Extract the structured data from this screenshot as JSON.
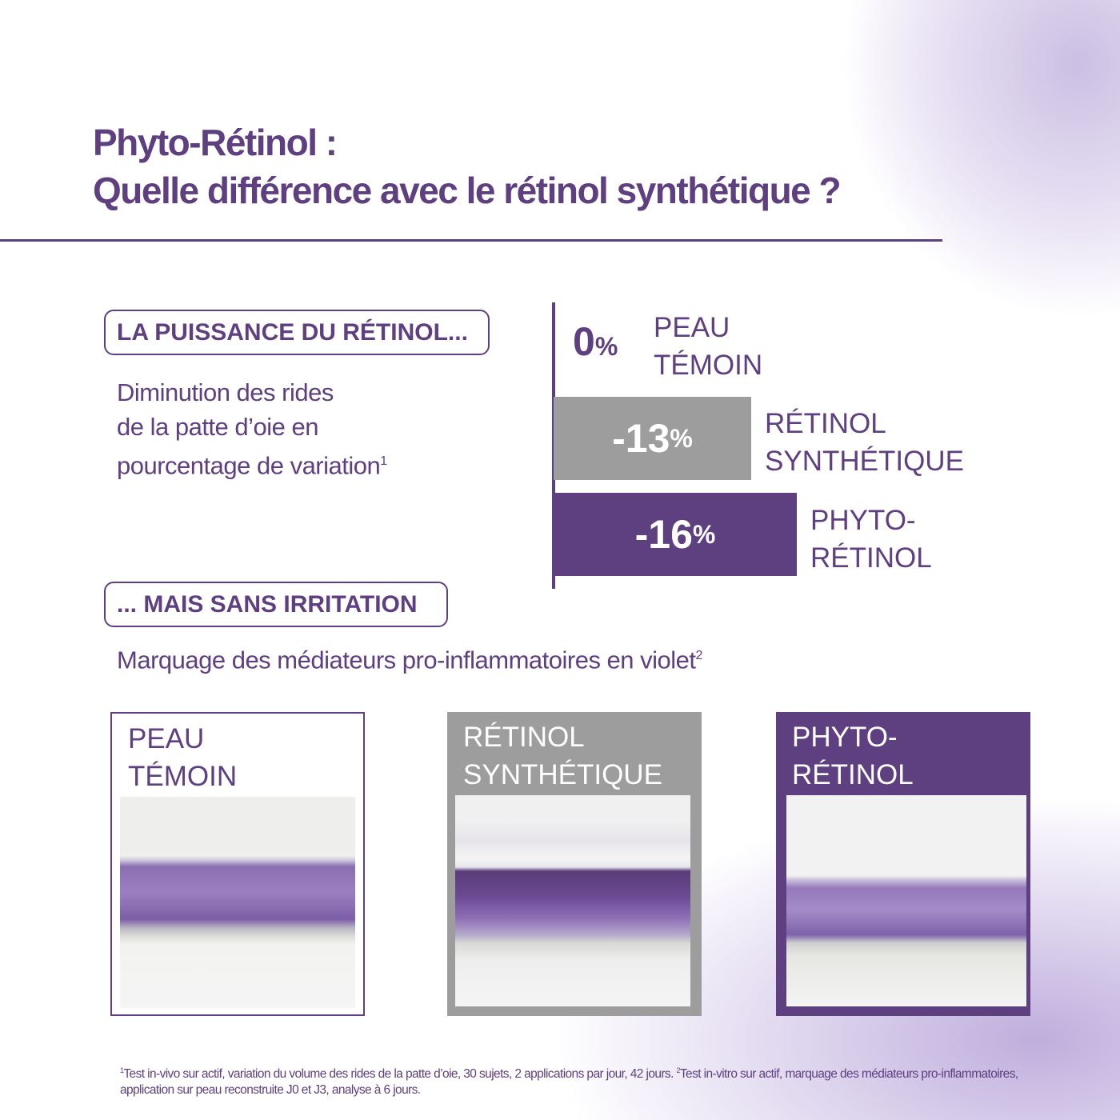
{
  "title": {
    "line1": "Phyto-Rétinol :",
    "line2": "Quelle différence avec le rétinol synthétique ?"
  },
  "section1": {
    "pill": "LA PUISSANCE DU RÉTINOL...",
    "desc_lines": [
      "Diminution des rides",
      "de la patte d’oie en",
      "pourcentage de variation"
    ],
    "sup": "1"
  },
  "section2": {
    "pill": "... MAIS SANS IRRITATION",
    "desc": "Marquage des médiateurs pro-inflammatoires en violet",
    "sup": "2"
  },
  "chart_data": {
    "type": "bar",
    "orientation": "horizontal",
    "categories": [
      "PEAU TÉMOIN",
      "RÉTINOL SYNTHÉTIQUE",
      "PHYTO-RÉTINOL"
    ],
    "values": [
      0,
      -13,
      -16
    ],
    "unit": "%",
    "labels": [
      {
        "num": "0",
        "pct": "%",
        "l1": "PEAU",
        "l2": "TÉMOIN"
      },
      {
        "num": "-13",
        "pct": "%",
        "l1": "RÉTINOL",
        "l2": "SYNTHÉTIQUE"
      },
      {
        "num": "-16",
        "pct": "%",
        "l1": "PHYTO-",
        "l2": "RÉTINOL"
      }
    ],
    "colors": [
      "#5e3f80",
      "#9d9d9d",
      "#5e3f80"
    ]
  },
  "panels": [
    {
      "l1": "PEAU",
      "l2": "TÉMOIN"
    },
    {
      "l1": "RÉTINOL",
      "l2": "SYNTHÉTIQUE"
    },
    {
      "l1": "PHYTO-",
      "l2": "RÉTINOL"
    }
  ],
  "footnote": {
    "s1": "1",
    "t1": "Test in-vivo sur actif, variation du volume des rides de la patte d’oie, 30 sujets, 2 applications par jour, 42 jours. ",
    "s2": "2",
    "t2": "Test in-vitro sur actif, marquage des médiateurs pro-inflammatoires, application sur peau reconstruite J0 et J3, analyse à 6 jours."
  },
  "colors": {
    "brand": "#5e3f80",
    "gray": "#9d9d9d"
  }
}
